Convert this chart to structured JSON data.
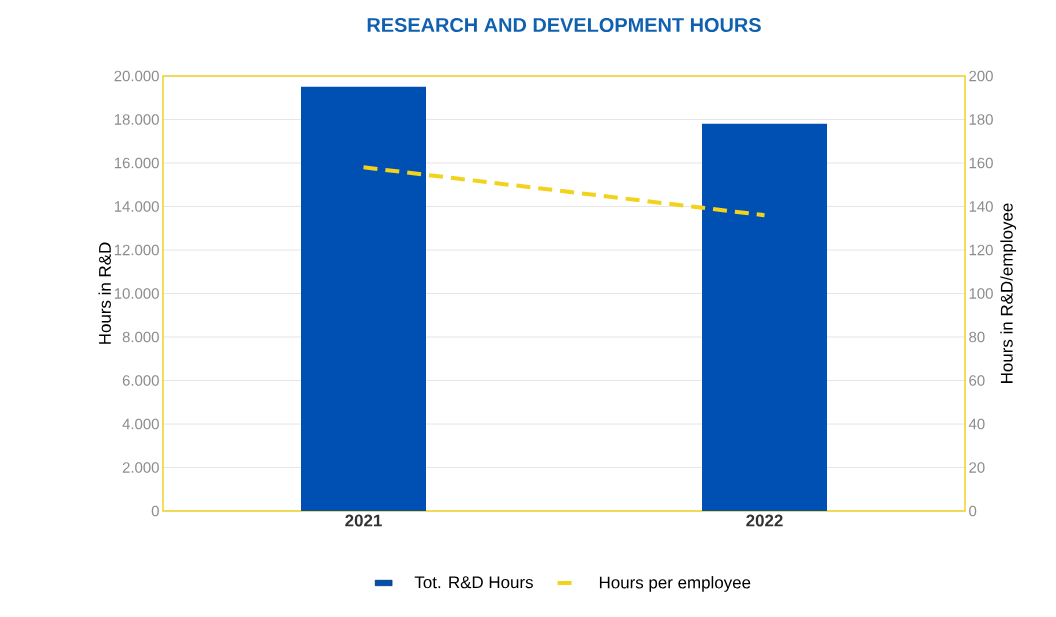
{
  "chart_data": {
    "type": "bar",
    "title": "RESEARCH AND DEVELOPMENT HOURS",
    "ylabel": "Hours in R&D",
    "y2label": "Hours in R&D/employee",
    "categories": [
      "2021",
      "2022"
    ],
    "series": [
      {
        "name": "Tot. R&D Hours",
        "color": "#0050b4",
        "values": [
          19500,
          17800
        ]
      },
      {
        "name": "Hours per employee",
        "type": "line",
        "color": "#f2d21a",
        "values": [
          158,
          136
        ],
        "axis": "y2",
        "line_style": "dashed"
      }
    ],
    "ylim": [
      0,
      20000
    ],
    "yticks": [
      0,
      {
        "value": 2000,
        "label": "2.000"
      },
      {
        "value": 4000,
        "label": "4.000"
      },
      {
        "value": 6000,
        "label": "6.000"
      },
      {
        "value": 8000,
        "label": "8.000"
      },
      {
        "value": 10000,
        "label": "10.000"
      },
      {
        "value": 12000,
        "label": "12.000"
      },
      {
        "value": 14000,
        "label": "14.000"
      },
      {
        "value": 16000,
        "label": "16.000"
      },
      {
        "value": 18000,
        "label": "18.000"
      },
      {
        "value": 20000,
        "label": "20.000"
      }
    ],
    "y2lim": [
      0,
      200
    ],
    "y2ticks": [
      0,
      20,
      40,
      60,
      80,
      100,
      120,
      140,
      160,
      180,
      200
    ],
    "grid": "y",
    "legend": "bottom"
  }
}
